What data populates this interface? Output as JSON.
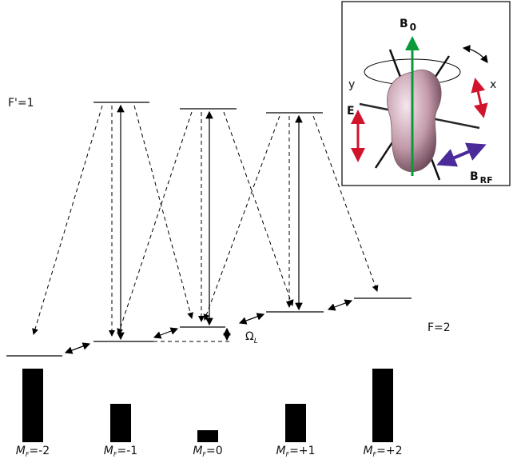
{
  "upper_label": "F'=1",
  "lower_label": "F=2",
  "splitting": {
    "symbol": "Ω",
    "sub": "L"
  },
  "sublevels": [
    {
      "m": "M",
      "sub": "F",
      "val": "=-2"
    },
    {
      "m": "M",
      "sub": "F",
      "val": "=-1"
    },
    {
      "m": "M",
      "sub": "F",
      "val": "=0"
    },
    {
      "m": "M",
      "sub": "F",
      "val": "=+1"
    },
    {
      "m": "M",
      "sub": "F",
      "val": "=+2"
    }
  ],
  "populations": [
    92,
    48,
    15,
    48,
    92
  ],
  "inset": {
    "b0": "B",
    "b0_sub": "0",
    "y": "y",
    "x": "x",
    "e": "E",
    "brf": "B",
    "brf_sub": "RF"
  }
}
